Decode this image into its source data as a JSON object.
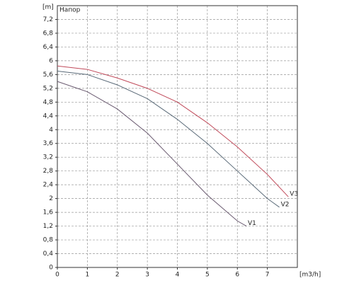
{
  "chart_data": {
    "type": "line",
    "title": "Напор",
    "y_label": "[m]",
    "x_label": "[m3/h]",
    "xlim": [
      0,
      8
    ],
    "xticks": [
      0,
      1,
      2,
      3,
      4,
      5,
      6,
      7
    ],
    "ylim": [
      0,
      7.6
    ],
    "yticks": [
      0,
      {
        "value": 0.4,
        "label": "0,4"
      },
      {
        "value": 0.8,
        "label": "0,8"
      },
      {
        "value": 1.2,
        "label": "1,2"
      },
      {
        "value": 1.6,
        "label": "1,6"
      },
      2,
      {
        "value": 2.4,
        "label": "2,4"
      },
      {
        "value": 2.8,
        "label": "2,8"
      },
      {
        "value": 3.2,
        "label": "3,2"
      },
      {
        "value": 3.6,
        "label": "3,6"
      },
      4,
      {
        "value": 4.4,
        "label": "4,4"
      },
      {
        "value": 4.8,
        "label": "4,8"
      },
      {
        "value": 5.2,
        "label": "5,2"
      },
      {
        "value": 5.6,
        "label": "5,6"
      },
      6,
      {
        "value": 6.4,
        "label": "6,4"
      },
      {
        "value": 6.8,
        "label": "6,8"
      },
      {
        "value": 7.2,
        "label": "7,2"
      }
    ],
    "grid": true,
    "series": [
      {
        "name": "V3",
        "color": "#c04a5a",
        "x": [
          0,
          1,
          2,
          3,
          4,
          5,
          6,
          7,
          7.7
        ],
        "values": [
          5.85,
          5.75,
          5.5,
          5.2,
          4.8,
          4.2,
          3.5,
          2.7,
          2.05
        ]
      },
      {
        "name": "V2",
        "color": "#5a6a78",
        "x": [
          0,
          1,
          2,
          3,
          4,
          5,
          6,
          7,
          7.4
        ],
        "values": [
          5.7,
          5.6,
          5.3,
          4.9,
          4.3,
          3.6,
          2.8,
          2.0,
          1.75
        ]
      },
      {
        "name": "V1",
        "color": "#6a5a70",
        "x": [
          0,
          1,
          2,
          3,
          4,
          5,
          6,
          6.3
        ],
        "values": [
          5.4,
          5.1,
          4.6,
          3.9,
          3.0,
          2.1,
          1.35,
          1.2
        ]
      }
    ]
  }
}
